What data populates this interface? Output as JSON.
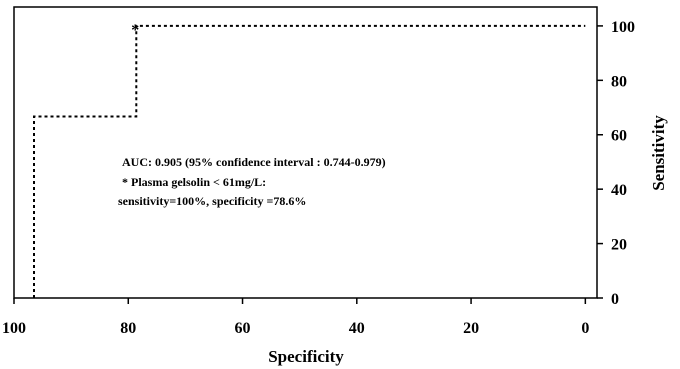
{
  "chart_data": {
    "type": "line",
    "xlabel": "Specificity",
    "ylabel": "Sensitivity",
    "x_reversed": true,
    "y_axis_side": "right",
    "xlim": [
      0,
      100
    ],
    "ylim": [
      0,
      100
    ],
    "xticks": [
      "100",
      "80",
      "60",
      "40",
      "20",
      "0"
    ],
    "yticks": [
      "0",
      "20",
      "40",
      "60",
      "80",
      "100"
    ],
    "series": [
      {
        "line_style": "dashed",
        "points": [
          {
            "x": 96.5,
            "y": 0
          },
          {
            "x": 96.5,
            "y": 66.7
          },
          {
            "x": 78.6,
            "y": 66.7
          },
          {
            "x": 78.6,
            "y": 100
          },
          {
            "x": 0,
            "y": 100
          }
        ]
      }
    ],
    "cutoff_marker": {
      "symbol": "*",
      "x": 78.6,
      "y": 100
    },
    "annotations": [
      "AUC: 0.905 (95% confidence interval : 0.744-0.979)",
      "* Plasma gelsolin < 61mg/L:",
      "sensitivity=100%, specificity =78.6%"
    ]
  }
}
